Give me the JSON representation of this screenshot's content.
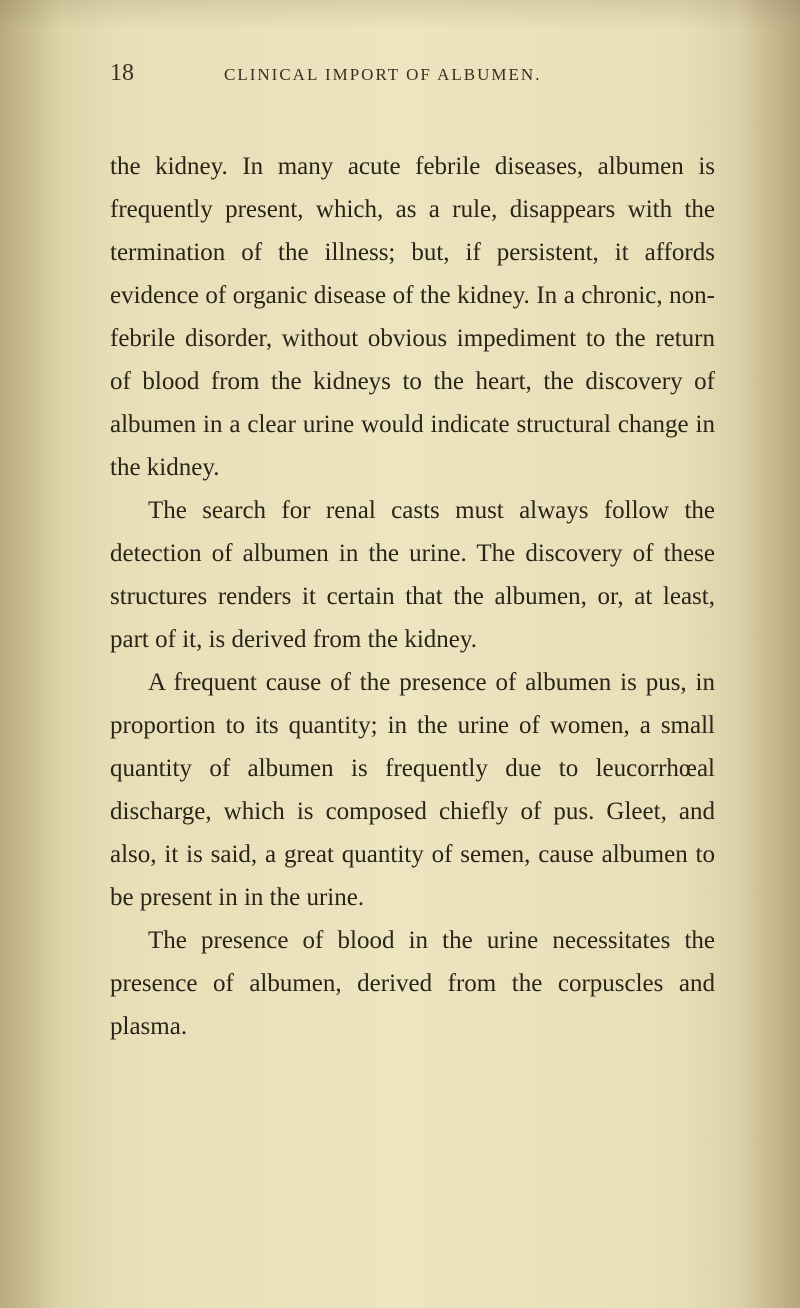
{
  "page": {
    "number": "18",
    "running_title": "CLINICAL IMPORT OF ALBUMEN.",
    "paragraphs": [
      "the kidney. In many acute febrile diseases, albumen is frequently present, which, as a rule, disappears with the termination of the illness; but, if persistent, it affords evidence of organic disease of the kidney. In a chronic, non-febrile disorder, without obvious impediment to the return of blood from the kidneys to the heart, the discovery of albumen in a clear urine would indicate structural change in the kidney.",
      "The search for renal casts must always follow the detection of albumen in the urine. The discovery of these structures renders it certain that the albumen, or, at least, part of it, is derived from the kidney.",
      "A frequent cause of the presence of albumen is pus, in proportion to its quantity; in the urine of women, a small quantity of albumen is frequently due to leucorrhœal discharge, which is composed chiefly of pus. Gleet, and also, it is said, a great quantity of semen, cause albumen to be present in in the urine.",
      "The presence of blood in the urine necessitates the presence of albumen, derived from the corpuscles and plasma."
    ]
  },
  "style": {
    "background_color": "#ede4c0",
    "text_color": "#2a2418",
    "body_fontsize": 25,
    "header_fontsize": 17,
    "page_number_fontsize": 24,
    "line_height": 1.72
  }
}
